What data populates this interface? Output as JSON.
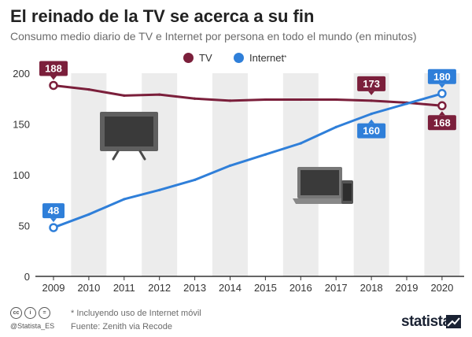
{
  "title": "El reinado de la TV se acerca a su fin",
  "subtitle": "Consumo medio diario de TV e Internet por persona en todo el mundo (en minutos)",
  "legend": {
    "tv": "TV",
    "internet": "Internet",
    "internet_marker": "*"
  },
  "colors": {
    "tv": "#7b1f3b",
    "internet": "#2f7fd9",
    "band": "#ececec",
    "axis": "#333333"
  },
  "footer": {
    "note": "* Incluyendo uso de Internet móvil",
    "source": "Fuente: Zenith via Recode",
    "handle": "@Statista_ES",
    "brand": "statista",
    "license_icons": [
      "cc-icon",
      "attribution-icon",
      "no-derivatives-icon"
    ],
    "license_labels": [
      "cc",
      "i",
      "="
    ]
  },
  "illustrations": [
    "tv-icon",
    "laptop-icon",
    "smartphone-icon"
  ],
  "chart_data": {
    "type": "line",
    "x": [
      2009,
      2010,
      2011,
      2012,
      2013,
      2014,
      2015,
      2016,
      2017,
      2018,
      2019,
      2020
    ],
    "ylim": [
      0,
      200
    ],
    "yticks": [
      0,
      50,
      100,
      150,
      200
    ],
    "series": [
      {
        "name": "TV",
        "values": [
          188,
          184,
          178,
          179,
          175,
          173,
          174,
          174,
          174,
          173,
          171,
          168
        ]
      },
      {
        "name": "Internet",
        "values": [
          48,
          61,
          76,
          85,
          95,
          109,
          120,
          131,
          147,
          160,
          170,
          180
        ]
      }
    ],
    "data_labels": [
      {
        "series": "TV",
        "x": 2009,
        "text": "188",
        "placement": "above"
      },
      {
        "series": "TV",
        "x": 2018,
        "text": "173",
        "placement": "above"
      },
      {
        "series": "TV",
        "x": 2020,
        "text": "168",
        "placement": "below"
      },
      {
        "series": "Internet",
        "x": 2009,
        "text": "48",
        "placement": "above"
      },
      {
        "series": "Internet",
        "x": 2018,
        "text": "160",
        "placement": "below"
      },
      {
        "series": "Internet",
        "x": 2020,
        "text": "180",
        "placement": "above"
      }
    ],
    "alternating_bands": true,
    "xlabel": "",
    "ylabel": ""
  }
}
